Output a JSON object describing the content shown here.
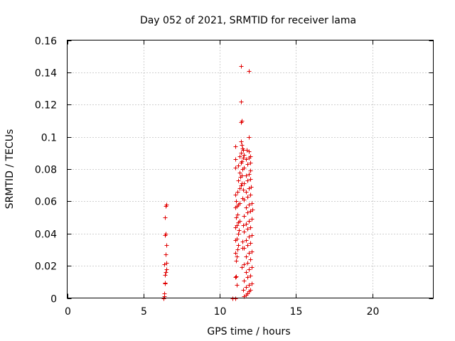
{
  "chart_data": {
    "type": "scatter",
    "title": "Day 052 of 2021, SRMTID for receiver lama",
    "xlabel": "GPS time / hours",
    "ylabel": "SRMTID / TECUs",
    "xlim": [
      0,
      24
    ],
    "ylim": [
      0,
      0.16
    ],
    "xticks": [
      0,
      5,
      10,
      15,
      20
    ],
    "yticks": [
      0,
      0.02,
      0.04,
      0.06,
      0.08,
      0.1,
      0.12,
      0.14,
      0.16
    ],
    "xtick_labels": [
      "0",
      "5",
      "10",
      "15",
      "20"
    ],
    "ytick_labels": [
      "0",
      "0.02",
      "0.04",
      "0.06",
      "0.08",
      "0.1",
      "0.12",
      "0.14",
      "0.16"
    ],
    "grid": true,
    "marker": "+",
    "marker_color": "#e00000",
    "series": [
      {
        "name": "SRMTID",
        "points": [
          [
            6.3,
            0.0
          ],
          [
            6.35,
            0.001
          ],
          [
            6.38,
            0.003
          ],
          [
            6.4,
            0.009
          ],
          [
            6.42,
            0.0095
          ],
          [
            6.4,
            0.0145
          ],
          [
            6.45,
            0.016
          ],
          [
            6.5,
            0.018
          ],
          [
            6.38,
            0.021
          ],
          [
            6.48,
            0.022
          ],
          [
            6.45,
            0.027
          ],
          [
            6.5,
            0.033
          ],
          [
            6.4,
            0.039
          ],
          [
            6.45,
            0.04
          ],
          [
            6.42,
            0.05
          ],
          [
            6.45,
            0.057
          ],
          [
            6.5,
            0.058
          ],
          [
            10.85,
            0.0
          ],
          [
            11.0,
            0.0
          ],
          [
            11.0,
            0.013
          ],
          [
            11.05,
            0.0135
          ],
          [
            11.1,
            0.008
          ],
          [
            11.05,
            0.023
          ],
          [
            11.1,
            0.026
          ],
          [
            11.0,
            0.028
          ],
          [
            11.15,
            0.03
          ],
          [
            11.2,
            0.033
          ],
          [
            11.0,
            0.036
          ],
          [
            11.1,
            0.037
          ],
          [
            11.2,
            0.04
          ],
          [
            11.25,
            0.042
          ],
          [
            11.0,
            0.044
          ],
          [
            11.1,
            0.045
          ],
          [
            11.2,
            0.047
          ],
          [
            11.3,
            0.048
          ],
          [
            11.05,
            0.05
          ],
          [
            11.15,
            0.052
          ],
          [
            11.0,
            0.056
          ],
          [
            11.1,
            0.057
          ],
          [
            11.2,
            0.058
          ],
          [
            11.3,
            0.059
          ],
          [
            11.05,
            0.06
          ],
          [
            11.0,
            0.064
          ],
          [
            11.15,
            0.066
          ],
          [
            11.3,
            0.068
          ],
          [
            11.4,
            0.07
          ],
          [
            11.2,
            0.073
          ],
          [
            11.35,
            0.075
          ],
          [
            11.45,
            0.076
          ],
          [
            11.3,
            0.078
          ],
          [
            11.0,
            0.081
          ],
          [
            11.2,
            0.082
          ],
          [
            11.4,
            0.084
          ],
          [
            11.45,
            0.085
          ],
          [
            11.0,
            0.086
          ],
          [
            11.3,
            0.088
          ],
          [
            11.4,
            0.09
          ],
          [
            11.0,
            0.094
          ],
          [
            11.45,
            0.095
          ],
          [
            11.4,
            0.097
          ],
          [
            11.5,
            0.093
          ],
          [
            11.55,
            0.092
          ],
          [
            11.4,
            0.109
          ],
          [
            11.45,
            0.11
          ],
          [
            11.4,
            0.122
          ],
          [
            11.4,
            0.144
          ],
          [
            11.9,
            0.141
          ],
          [
            11.9,
            0.1
          ],
          [
            11.6,
            0.001
          ],
          [
            11.7,
            0.002
          ],
          [
            11.8,
            0.003
          ],
          [
            11.9,
            0.004
          ],
          [
            12.0,
            0.005
          ],
          [
            11.7,
            0.007
          ],
          [
            11.9,
            0.008
          ],
          [
            12.1,
            0.009
          ],
          [
            11.6,
            0.011
          ],
          [
            11.8,
            0.013
          ],
          [
            12.0,
            0.014
          ],
          [
            11.7,
            0.016
          ],
          [
            11.9,
            0.018
          ],
          [
            12.1,
            0.019
          ],
          [
            11.6,
            0.021
          ],
          [
            11.8,
            0.022
          ],
          [
            12.0,
            0.024
          ],
          [
            11.7,
            0.026
          ],
          [
            11.9,
            0.028
          ],
          [
            12.1,
            0.029
          ],
          [
            11.6,
            0.031
          ],
          [
            11.8,
            0.033
          ],
          [
            12.0,
            0.034
          ],
          [
            11.7,
            0.036
          ],
          [
            11.9,
            0.038
          ],
          [
            12.1,
            0.039
          ],
          [
            11.6,
            0.041
          ],
          [
            11.8,
            0.043
          ],
          [
            12.0,
            0.044
          ],
          [
            11.7,
            0.046
          ],
          [
            11.9,
            0.048
          ],
          [
            12.1,
            0.049
          ],
          [
            11.6,
            0.051
          ],
          [
            11.8,
            0.053
          ],
          [
            12.0,
            0.054
          ],
          [
            12.15,
            0.055
          ],
          [
            11.7,
            0.056
          ],
          [
            11.9,
            0.058
          ],
          [
            12.1,
            0.059
          ],
          [
            11.6,
            0.061
          ],
          [
            11.8,
            0.063
          ],
          [
            12.0,
            0.064
          ],
          [
            11.7,
            0.066
          ],
          [
            11.9,
            0.068
          ],
          [
            12.05,
            0.069
          ],
          [
            11.6,
            0.071
          ],
          [
            11.8,
            0.073
          ],
          [
            12.0,
            0.074
          ],
          [
            11.7,
            0.076
          ],
          [
            11.9,
            0.077
          ],
          [
            12.0,
            0.079
          ],
          [
            11.6,
            0.081
          ],
          [
            11.8,
            0.083
          ],
          [
            12.0,
            0.084
          ],
          [
            11.7,
            0.086
          ],
          [
            11.9,
            0.087
          ],
          [
            12.0,
            0.088
          ],
          [
            11.6,
            0.089
          ],
          [
            11.9,
            0.091
          ],
          [
            11.75,
            0.092
          ],
          [
            11.5,
            0.031
          ],
          [
            11.45,
            0.019
          ],
          [
            11.55,
            0.005
          ],
          [
            11.5,
            0.035
          ],
          [
            11.55,
            0.045
          ],
          [
            11.5,
            0.062
          ],
          [
            11.55,
            0.067
          ],
          [
            11.45,
            0.071
          ],
          [
            11.5,
            0.08
          ],
          [
            11.55,
            0.087
          ]
        ]
      }
    ]
  }
}
